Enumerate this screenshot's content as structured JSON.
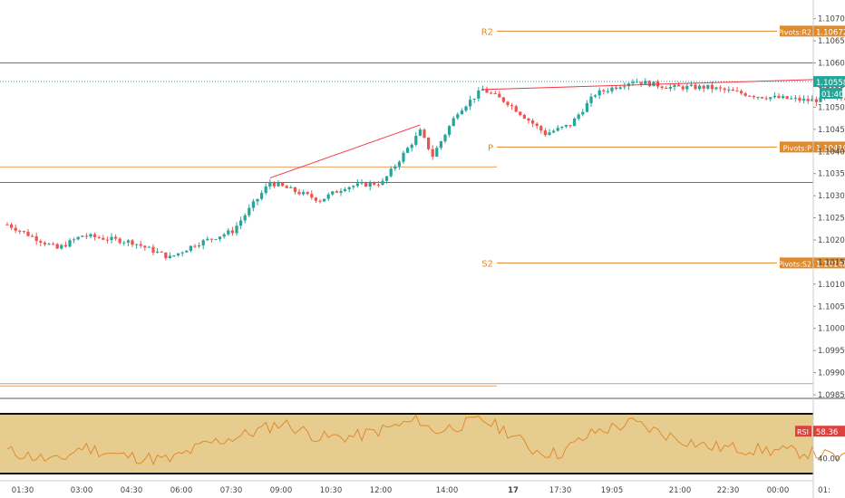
{
  "chart_data": [
    {
      "type": "candlestick",
      "title": "",
      "ylim": [
        1.0985,
        1.1073
      ],
      "time_labels": [
        "01:30",
        "03:00",
        "04:30",
        "06:00",
        "07:30",
        "09:00",
        "10:30",
        "12:00",
        "14:00",
        "17",
        "17:30",
        "19:05",
        "21:00",
        "22:30",
        "00:00",
        "01:"
      ],
      "time_label_bold": "17",
      "price_ticks": [
        "1.10700",
        "1.10650",
        "1.10600",
        "1.10550",
        "1.10500",
        "1.10450",
        "1.10400",
        "1.10350",
        "1.10300",
        "1.10250",
        "1.10200",
        "1.10150",
        "1.10100",
        "1.10050",
        "1.10000",
        "1.09950",
        "1.09900",
        "1.09850"
      ],
      "price_tick_values": [
        1.107,
        1.1065,
        1.106,
        1.1055,
        1.105,
        1.1045,
        1.104,
        1.1035,
        1.103,
        1.1025,
        1.102,
        1.1015,
        1.101,
        1.1005,
        1.1,
        1.0995,
        1.099,
        1.0985
      ],
      "last_price": {
        "value": 1.10558,
        "label": "1.10558",
        "countdown": "01:40",
        "color": "#26a69a"
      },
      "pivots": [
        {
          "name": "R2",
          "value": 1.10672,
          "label": "Pivots:R2",
          "value_label": "1.10672",
          "x_start": "00:00",
          "color": "#e08a2e"
        },
        {
          "name": "P",
          "value": 1.1041,
          "label": "Pivots:P",
          "value_label": "1.10410",
          "x_start": "13:00",
          "color": "#e08a2e"
        },
        {
          "name": "S2",
          "value": 1.10148,
          "label": "Pivots:S2",
          "value_label": "1.10148",
          "x_start": "13:00",
          "color": "#e08a2e"
        }
      ],
      "horizontal_levels": [
        {
          "value": 1.106,
          "color": "#f23645"
        },
        {
          "value": 1.1033,
          "color": "#f23645"
        },
        {
          "value": 1.10365,
          "color": "#e8a06a"
        },
        {
          "value": 1.0987,
          "color": "#e8a06a"
        },
        {
          "value": 1.09875,
          "color": "#aaaaaa"
        }
      ],
      "trend_lines": [
        {
          "from": {
            "time": "05:15",
            "price": 1.1034
          },
          "to": {
            "time": "08:15",
            "price": 1.1046
          },
          "color": "#f23645"
        },
        {
          "from": {
            "time": "09:30",
            "price": 1.1054
          },
          "to": {
            "time": "18:20",
            "price": 1.1057
          },
          "color": "#f23645"
        }
      ],
      "candle_colors": {
        "up": "#26a69a",
        "down": "#ef5350"
      },
      "anchors": [
        {
          "time": "00:00",
          "price": 1.10235
        },
        {
          "time": "01:00",
          "price": 1.1018
        },
        {
          "time": "01:30",
          "price": 1.1021
        },
        {
          "time": "02:30",
          "price": 1.10195
        },
        {
          "time": "03:15",
          "price": 1.1016
        },
        {
          "time": "03:45",
          "price": 1.1019
        },
        {
          "time": "04:30",
          "price": 1.1022
        },
        {
          "time": "05:15",
          "price": 1.1033
        },
        {
          "time": "05:45",
          "price": 1.1031
        },
        {
          "time": "06:15",
          "price": 1.1029
        },
        {
          "time": "06:45",
          "price": 1.1032
        },
        {
          "time": "07:30",
          "price": 1.1033
        },
        {
          "time": "08:15",
          "price": 1.10445
        },
        {
          "time": "08:30",
          "price": 1.1039
        },
        {
          "time": "09:00",
          "price": 1.1049
        },
        {
          "time": "09:30",
          "price": 1.1054
        },
        {
          "time": "10:00",
          "price": 1.1051
        },
        {
          "time": "10:45",
          "price": 1.1044
        },
        {
          "time": "11:15",
          "price": 1.1046
        },
        {
          "time": "11:45",
          "price": 1.1053
        },
        {
          "time": "12:30",
          "price": 1.1056
        },
        {
          "time": "13:15",
          "price": 1.10545
        },
        {
          "time": "14:00",
          "price": 1.10545
        },
        {
          "time": "15:00",
          "price": 1.10525
        },
        {
          "time": "16:00",
          "price": 1.10515
        },
        {
          "time": "17:15",
          "price": 1.10525
        },
        {
          "time": "17:45",
          "price": 1.1052
        },
        {
          "time": "18:20",
          "price": 1.1057
        },
        {
          "time": "18:55",
          "price": 1.10556
        }
      ]
    },
    {
      "type": "line",
      "title": "",
      "series": [
        {
          "name": "RSI",
          "color": "#e08a2e"
        }
      ],
      "ylim": [
        0,
        100
      ],
      "band": {
        "low": 30,
        "high": 70,
        "fill": "#e6cd8f"
      },
      "y_tick_labels": [
        "40.00"
      ],
      "y_tick_values": [
        40
      ],
      "value": {
        "label": "58.36",
        "value": 58.36,
        "color": "#e0413f"
      },
      "anchors": [
        {
          "time": "00:00",
          "value": 45
        },
        {
          "time": "01:00",
          "value": 38
        },
        {
          "time": "01:30",
          "value": 48
        },
        {
          "time": "02:15",
          "value": 42
        },
        {
          "time": "03:15",
          "value": 39
        },
        {
          "time": "04:00",
          "value": 50
        },
        {
          "time": "04:45",
          "value": 56
        },
        {
          "time": "05:30",
          "value": 64
        },
        {
          "time": "06:15",
          "value": 54
        },
        {
          "time": "07:00",
          "value": 55
        },
        {
          "time": "08:15",
          "value": 66
        },
        {
          "time": "08:30",
          "value": 58
        },
        {
          "time": "09:30",
          "value": 66
        },
        {
          "time": "10:00",
          "value": 58
        },
        {
          "time": "10:30",
          "value": 46
        },
        {
          "time": "11:00",
          "value": 43
        },
        {
          "time": "11:45",
          "value": 58
        },
        {
          "time": "12:30",
          "value": 64
        },
        {
          "time": "13:15",
          "value": 55
        },
        {
          "time": "14:00",
          "value": 48
        },
        {
          "time": "15:00",
          "value": 46
        },
        {
          "time": "16:00",
          "value": 44
        },
        {
          "time": "16:45",
          "value": 40
        },
        {
          "time": "17:15",
          "value": 44
        },
        {
          "time": "17:45",
          "value": 49
        },
        {
          "time": "18:20",
          "value": 64
        },
        {
          "time": "18:55",
          "value": 58.36
        }
      ]
    }
  ]
}
